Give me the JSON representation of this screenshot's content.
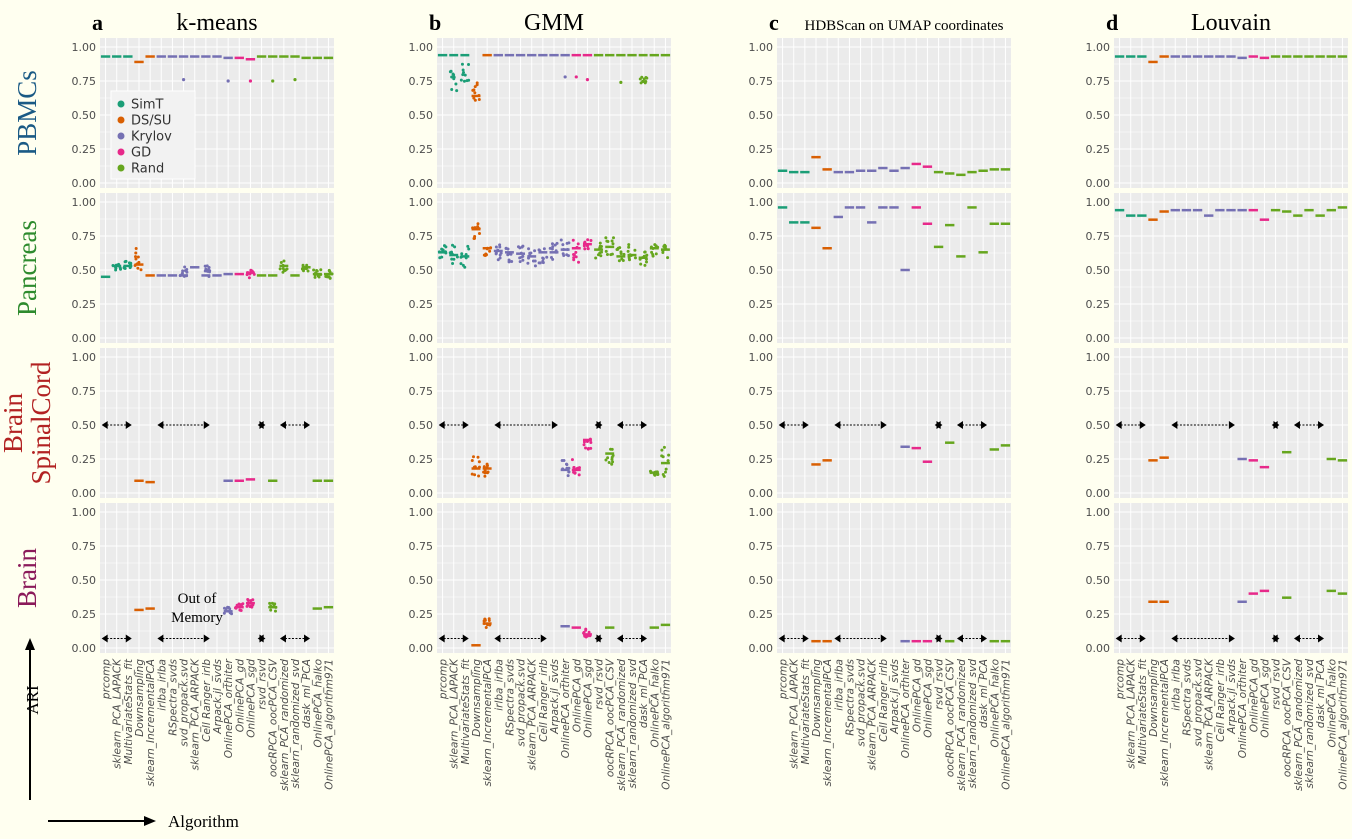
{
  "figure": {
    "y_axis_title": "ARI",
    "x_axis_title": "Algorithm",
    "annotation_out_of_memory": [
      "Out of",
      "Memory"
    ]
  },
  "legend": [
    {
      "name": "SimT",
      "color": "#1B9E77"
    },
    {
      "name": "DS/SU",
      "color": "#D95F02"
    },
    {
      "name": "Krylov",
      "color": "#7570B3"
    },
    {
      "name": "GD",
      "color": "#E7298A"
    },
    {
      "name": "Rand",
      "color": "#66A61E"
    }
  ],
  "chart_data": {
    "type": "scatter",
    "description_level": "faceted strip plots",
    "y_ticks": [
      "0.00",
      "0.25",
      "0.50",
      "0.75",
      "1.00"
    ],
    "ylim": [
      0,
      1
    ],
    "grid": true,
    "legend_placement": "top-left of first panel",
    "columns": [
      {
        "letter": "a",
        "title": "k-means"
      },
      {
        "letter": "b",
        "title": "GMM"
      },
      {
        "letter": "c",
        "title": "HDBScan on UMAP coordinates"
      },
      {
        "letter": "d",
        "title": "Louvain"
      }
    ],
    "rows": [
      {
        "label": "PBMCs",
        "color": "#1A5A85"
      },
      {
        "label": "Pancreas",
        "color": "#2E8B2E"
      },
      {
        "label": "Brain SpinalCord",
        "lines": [
          "Brain",
          "SpinalCord"
        ],
        "color": "#B22222"
      },
      {
        "label": "Brain",
        "color": "#8B1A5A"
      }
    ],
    "algorithms": [
      {
        "name": "prcomp",
        "group": "SimT"
      },
      {
        "name": "sklearn_PCA_LAPACK",
        "group": "SimT"
      },
      {
        "name": "MultivariateStats_fit",
        "group": "SimT"
      },
      {
        "name": "Downsampling",
        "group": "DS/SU"
      },
      {
        "name": "sklearn_IncrementalPCA",
        "group": "DS/SU"
      },
      {
        "name": "irlba_irlba",
        "group": "Krylov"
      },
      {
        "name": "RSpectra_svds",
        "group": "Krylov"
      },
      {
        "name": "svd_propack.svd",
        "group": "Krylov"
      },
      {
        "name": "sklearn_PCA_ARPACK",
        "group": "Krylov"
      },
      {
        "name": "Cell Ranger_irlb",
        "group": "Krylov"
      },
      {
        "name": "Arpack.jl_svds",
        "group": "Krylov"
      },
      {
        "name": "OnlinePCA_orthiter",
        "group": "Krylov"
      },
      {
        "name": "OnlinePCA_gd",
        "group": "GD"
      },
      {
        "name": "OnlinePCA_sgd",
        "group": "GD"
      },
      {
        "name": "rsvd_rsvd",
        "group": "Rand"
      },
      {
        "name": "oocRPCA_oocPCA_CSV",
        "group": "Rand"
      },
      {
        "name": "sklearn_PCA_randomized",
        "group": "Rand"
      },
      {
        "name": "sklearn_randomized_svd",
        "group": "Rand"
      },
      {
        "name": "dask_ml_PCA",
        "group": "Rand"
      },
      {
        "name": "OnlinePCA_halko",
        "group": "Rand"
      },
      {
        "name": "OnlinePCA_algorithm971",
        "group": "Rand"
      }
    ],
    "panels": [
      [
        {
          "values": [
            0.93,
            0.93,
            0.93,
            0.89,
            0.93,
            0.93,
            0.93,
            0.93,
            0.93,
            0.93,
            0.93,
            0.92,
            0.92,
            0.91,
            0.93,
            0.93,
            0.93,
            0.93,
            0.92,
            0.92,
            0.92
          ],
          "outliers": [
            [
              7,
              0.76
            ],
            [
              11,
              0.75
            ],
            [
              13,
              0.75
            ],
            [
              15,
              0.75
            ],
            [
              17,
              0.76
            ]
          ]
        },
        {
          "values": [
            0.94,
            0.94,
            0.94,
            0.64,
            0.94,
            0.94,
            0.94,
            0.94,
            0.94,
            0.94,
            0.94,
            0.94,
            0.94,
            0.94,
            0.94,
            0.94,
            0.94,
            0.94,
            0.94,
            0.94,
            0.94
          ],
          "spread": {
            "1": [
              0.66,
              0.9
            ],
            "2": [
              0.73,
              0.88
            ],
            "3": [
              0.6,
              0.78
            ],
            "18": [
              0.72,
              0.78
            ]
          },
          "outliers": [
            [
              11,
              0.78
            ],
            [
              12,
              0.78
            ],
            [
              13,
              0.76
            ],
            [
              16,
              0.74
            ]
          ]
        },
        {
          "values": [
            0.09,
            0.08,
            0.08,
            0.19,
            0.1,
            0.08,
            0.08,
            0.09,
            0.09,
            0.11,
            0.09,
            0.11,
            0.14,
            0.12,
            0.08,
            0.07,
            0.06,
            0.08,
            0.09,
            0.1,
            0.1
          ]
        },
        {
          "values": [
            0.93,
            0.93,
            0.93,
            0.89,
            0.93,
            0.93,
            0.93,
            0.93,
            0.93,
            0.93,
            0.93,
            0.92,
            0.93,
            0.92,
            0.93,
            0.93,
            0.93,
            0.93,
            0.93,
            0.93,
            0.93
          ]
        }
      ],
      [
        {
          "values": [
            0.45,
            0.53,
            0.53,
            0.54,
            0.46,
            0.46,
            0.46,
            0.46,
            0.52,
            0.46,
            0.46,
            0.47,
            0.47,
            0.48,
            0.46,
            0.46,
            0.53,
            0.46,
            0.52,
            0.47,
            0.47
          ],
          "spread": {
            "1": [
              0.5,
              0.56
            ],
            "2": [
              0.51,
              0.57
            ],
            "3": [
              0.5,
              0.7
            ],
            "7": [
              0.45,
              0.55
            ],
            "9": [
              0.44,
              0.54
            ],
            "13": [
              0.44,
              0.5
            ],
            "16": [
              0.48,
              0.57
            ],
            "18": [
              0.49,
              0.54
            ],
            "19": [
              0.44,
              0.51
            ],
            "20": [
              0.43,
              0.5
            ]
          }
        },
        {
          "values": [
            0.63,
            0.61,
            0.6,
            0.8,
            0.66,
            0.64,
            0.63,
            0.62,
            0.6,
            0.63,
            0.63,
            0.65,
            0.66,
            0.69,
            0.65,
            0.67,
            0.6,
            0.61,
            0.59,
            0.66,
            0.65
          ],
          "spread": {
            "0": [
              0.58,
              0.7
            ],
            "1": [
              0.54,
              0.7
            ],
            "2": [
              0.52,
              0.68
            ],
            "3": [
              0.73,
              0.86
            ],
            "4": [
              0.6,
              0.72
            ],
            "5": [
              0.56,
              0.7
            ],
            "6": [
              0.56,
              0.69
            ],
            "7": [
              0.55,
              0.68
            ],
            "8": [
              0.53,
              0.68
            ],
            "9": [
              0.55,
              0.7
            ],
            "10": [
              0.56,
              0.7
            ],
            "11": [
              0.55,
              0.73
            ],
            "12": [
              0.55,
              0.72
            ],
            "13": [
              0.65,
              0.73
            ],
            "14": [
              0.58,
              0.71
            ],
            "15": [
              0.6,
              0.74
            ],
            "16": [
              0.55,
              0.7
            ],
            "17": [
              0.56,
              0.69
            ],
            "18": [
              0.52,
              0.66
            ],
            "19": [
              0.6,
              0.7
            ],
            "20": [
              0.58,
              0.69
            ]
          }
        },
        {
          "values": [
            0.96,
            0.85,
            0.85,
            0.81,
            0.66,
            0.89,
            0.96,
            0.96,
            0.85,
            0.96,
            0.96,
            0.5,
            0.96,
            0.84,
            0.67,
            0.83,
            0.6,
            0.96,
            0.63,
            0.84,
            0.84
          ]
        },
        {
          "values": [
            0.94,
            0.9,
            0.9,
            0.87,
            0.93,
            0.94,
            0.94,
            0.94,
            0.9,
            0.94,
            0.94,
            0.94,
            0.94,
            0.87,
            0.94,
            0.93,
            0.9,
            0.94,
            0.9,
            0.94,
            0.96
          ]
        }
      ],
      [
        {
          "values": [
            null,
            null,
            null,
            0.09,
            0.08,
            null,
            null,
            null,
            null,
            null,
            null,
            0.09,
            0.09,
            0.1,
            null,
            0.09,
            null,
            null,
            null,
            0.09,
            0.09
          ],
          "oom": [
            [
              0,
              2
            ],
            [
              5,
              9
            ],
            [
              14,
              14
            ],
            [
              16,
              18
            ]
          ]
        },
        {
          "values": [
            null,
            null,
            null,
            0.18,
            0.18,
            null,
            null,
            null,
            null,
            null,
            null,
            0.17,
            0.17,
            0.39,
            null,
            0.29,
            null,
            null,
            null,
            0.15,
            0.22
          ],
          "spread": {
            "3": [
              0.12,
              0.27
            ],
            "4": [
              0.12,
              0.24
            ],
            "11": [
              0.12,
              0.25
            ],
            "12": [
              0.12,
              0.25
            ],
            "13": [
              0.32,
              0.4
            ],
            "15": [
              0.19,
              0.34
            ],
            "19": [
              0.13,
              0.16
            ],
            "20": [
              0.12,
              0.34
            ]
          },
          "oom": [
            [
              0,
              2
            ],
            [
              5,
              10
            ],
            [
              14,
              14
            ],
            [
              16,
              18
            ]
          ]
        },
        {
          "values": [
            null,
            null,
            null,
            0.21,
            0.24,
            null,
            null,
            null,
            null,
            null,
            null,
            0.34,
            0.33,
            0.23,
            null,
            0.37,
            null,
            null,
            null,
            0.32,
            0.35
          ],
          "oom": [
            [
              0,
              2
            ],
            [
              5,
              9
            ],
            [
              14,
              14
            ],
            [
              16,
              18
            ]
          ]
        },
        {
          "values": [
            null,
            null,
            null,
            0.24,
            0.26,
            null,
            null,
            null,
            null,
            null,
            null,
            0.25,
            0.24,
            0.19,
            null,
            0.3,
            null,
            null,
            null,
            0.25,
            0.24
          ],
          "oom": [
            [
              0,
              2
            ],
            [
              5,
              10
            ],
            [
              14,
              14
            ],
            [
              16,
              18
            ]
          ]
        }
      ],
      [
        {
          "values": [
            null,
            null,
            null,
            0.28,
            0.29,
            null,
            null,
            null,
            null,
            null,
            null,
            0.27,
            0.3,
            0.33,
            null,
            0.3,
            null,
            null,
            null,
            0.29,
            0.3
          ],
          "spread": {
            "11": [
              0.25,
              0.3
            ],
            "12": [
              0.27,
              0.33
            ],
            "13": [
              0.3,
              0.36
            ],
            "15": [
              0.27,
              0.33
            ]
          },
          "oom": [
            [
              0,
              2
            ],
            [
              5,
              9
            ],
            [
              14,
              14
            ],
            [
              16,
              18
            ]
          ]
        },
        {
          "values": [
            null,
            null,
            null,
            0.02,
            0.18,
            null,
            null,
            null,
            null,
            null,
            null,
            0.16,
            0.15,
            0.1,
            null,
            0.15,
            null,
            null,
            null,
            0.15,
            0.17
          ],
          "spread": {
            "4": [
              0.14,
              0.22
            ],
            "13": [
              0.08,
              0.14
            ]
          },
          "oom": [
            [
              0,
              2
            ],
            [
              5,
              9
            ],
            [
              14,
              14
            ],
            [
              16,
              18
            ]
          ]
        },
        {
          "values": [
            null,
            null,
            null,
            0.05,
            0.05,
            null,
            null,
            null,
            null,
            null,
            null,
            0.05,
            0.05,
            0.05,
            null,
            0.05,
            null,
            null,
            null,
            0.05,
            0.05
          ],
          "oom": [
            [
              0,
              2
            ],
            [
              5,
              9
            ],
            [
              14,
              14
            ],
            [
              16,
              18
            ]
          ]
        },
        {
          "values": [
            null,
            null,
            null,
            0.34,
            0.34,
            null,
            null,
            null,
            null,
            null,
            null,
            0.34,
            0.4,
            0.42,
            null,
            0.37,
            null,
            null,
            null,
            0.42,
            0.4
          ],
          "oom": [
            [
              0,
              2
            ],
            [
              5,
              10
            ],
            [
              14,
              14
            ],
            [
              16,
              18
            ]
          ]
        }
      ]
    ]
  }
}
